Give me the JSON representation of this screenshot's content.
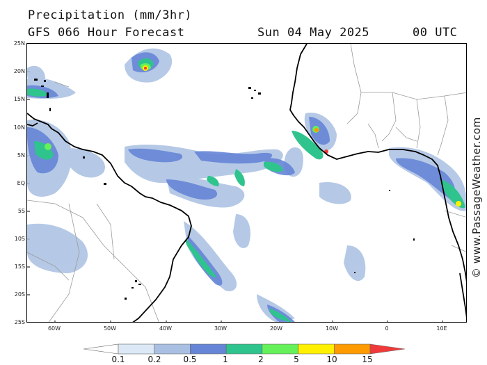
{
  "header": {
    "title": "Precipitation (mm/3hr)",
    "model": "GFS 066 Hour Forecast",
    "date": "Sun 04 May 2025",
    "time": "00 UTC"
  },
  "map": {
    "lat_labels": [
      "25N",
      "20N",
      "15N",
      "10N",
      "5N",
      "EQ",
      "5S",
      "10S",
      "15S",
      "20S",
      "25S"
    ],
    "lon_labels": [
      "60W",
      "50W",
      "40W",
      "30W",
      "20W",
      "10W",
      "0",
      "10E"
    ],
    "watermark": "© www.PassageWeather.com"
  },
  "legend": {
    "labels": [
      "0.1",
      "0.2",
      "0.5",
      "1",
      "2",
      "5",
      "10",
      "15"
    ],
    "colors": [
      "#ffffff",
      "#dce8f6",
      "#a9c0e2",
      "#6685d6",
      "#2fc48d",
      "#66f05a",
      "#fff000",
      "#ff9a00",
      "#f03a3a"
    ]
  },
  "colors": {
    "land_border": "#000000",
    "country_border": "#9a9a9a",
    "light_rain": "#a9c0e2",
    "moderate_rain": "#6685d6",
    "heavy_rain": "#2fc48d"
  }
}
